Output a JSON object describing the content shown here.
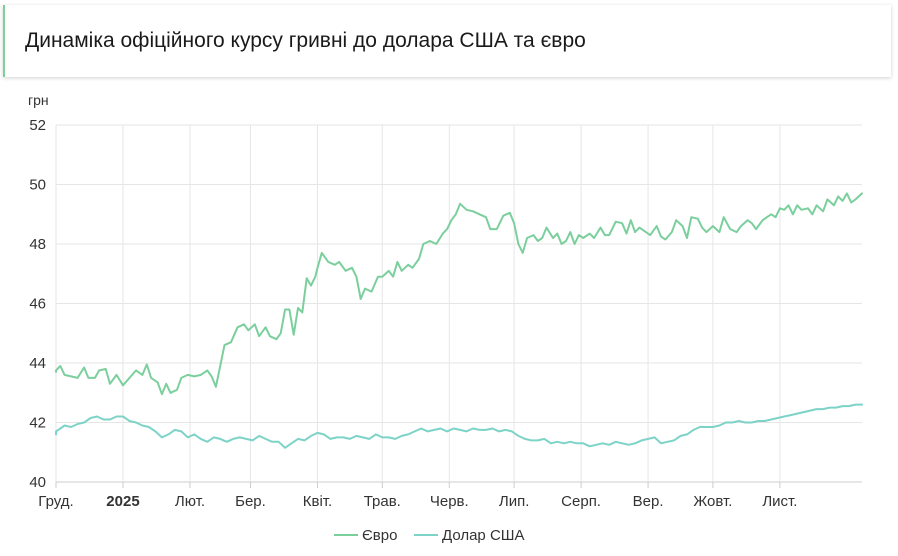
{
  "header": {
    "title": "Динаміка офіційного курсу гривні до долара США та євро"
  },
  "colors": {
    "euro": "#7bcf9d",
    "usd": "#7dd3c7",
    "grid": "#e6e6e6",
    "axis": "#cccccc"
  },
  "chart_data": {
    "type": "line",
    "title": "Динаміка офіційного курсу гривні до долара США та євро",
    "yunit": "грн",
    "ylim": [
      40,
      52
    ],
    "yticks": [
      "40",
      "42",
      "44",
      "46",
      "48",
      "50",
      "52"
    ],
    "grid": true,
    "legend": "bottom-center",
    "xrange": [
      0,
      373
    ],
    "xticks": [
      {
        "x": 0,
        "label": "Груд.",
        "bold": false
      },
      {
        "x": 31,
        "label": "2025",
        "bold": true
      },
      {
        "x": 62,
        "label": "Лют.",
        "bold": false
      },
      {
        "x": 90,
        "label": "Бер.",
        "bold": false
      },
      {
        "x": 121,
        "label": "Квіт.",
        "bold": false
      },
      {
        "x": 151,
        "label": "Трав.",
        "bold": false
      },
      {
        "x": 182,
        "label": "Черв.",
        "bold": false
      },
      {
        "x": 212,
        "label": "Лип.",
        "bold": false
      },
      {
        "x": 243,
        "label": "Серп.",
        "bold": false
      },
      {
        "x": 274,
        "label": "Вер.",
        "bold": false
      },
      {
        "x": 304,
        "label": "Жовт.",
        "bold": false
      },
      {
        "x": 335,
        "label": "Лист.",
        "bold": false
      }
    ],
    "series": [
      {
        "name": "Євро",
        "points": [
          [
            -6,
            43.7
          ],
          [
            -2,
            43.75
          ],
          [
            2,
            43.9
          ],
          [
            4,
            43.6
          ],
          [
            7,
            43.55
          ],
          [
            10,
            43.5
          ],
          [
            13,
            43.85
          ],
          [
            15,
            43.5
          ],
          [
            18,
            43.5
          ],
          [
            20,
            43.75
          ],
          [
            23,
            43.8
          ],
          [
            25,
            43.3
          ],
          [
            28,
            43.6
          ],
          [
            31,
            43.25
          ],
          [
            34,
            43.5
          ],
          [
            37,
            43.75
          ],
          [
            40,
            43.6
          ],
          [
            42,
            43.95
          ],
          [
            44,
            43.5
          ],
          [
            47,
            43.35
          ],
          [
            49,
            42.95
          ],
          [
            51,
            43.3
          ],
          [
            53,
            43.0
          ],
          [
            56,
            43.1
          ],
          [
            58,
            43.5
          ],
          [
            61,
            43.6
          ],
          [
            64,
            43.55
          ],
          [
            67,
            43.6
          ],
          [
            70,
            43.75
          ],
          [
            72,
            43.55
          ],
          [
            74,
            43.2
          ],
          [
            76,
            43.9
          ],
          [
            78,
            44.6
          ],
          [
            81,
            44.7
          ],
          [
            84,
            45.2
          ],
          [
            87,
            45.3
          ],
          [
            89,
            45.1
          ],
          [
            92,
            45.3
          ],
          [
            94,
            44.9
          ],
          [
            97,
            45.2
          ],
          [
            99,
            44.9
          ],
          [
            102,
            44.8
          ],
          [
            104,
            45.0
          ],
          [
            106,
            45.8
          ],
          [
            108,
            45.8
          ],
          [
            110,
            44.95
          ],
          [
            112,
            45.85
          ],
          [
            114,
            45.7
          ],
          [
            116,
            46.85
          ],
          [
            118,
            46.6
          ],
          [
            120,
            46.9
          ],
          [
            121,
            47.2
          ],
          [
            123,
            47.7
          ],
          [
            126,
            47.4
          ],
          [
            129,
            47.3
          ],
          [
            131,
            47.4
          ],
          [
            134,
            47.1
          ],
          [
            137,
            47.2
          ],
          [
            139,
            46.9
          ],
          [
            141,
            46.15
          ],
          [
            143,
            46.5
          ],
          [
            146,
            46.4
          ],
          [
            149,
            46.9
          ],
          [
            151,
            46.9
          ],
          [
            154,
            47.1
          ],
          [
            156,
            46.9
          ],
          [
            158,
            47.4
          ],
          [
            160,
            47.1
          ],
          [
            163,
            47.3
          ],
          [
            165,
            47.2
          ],
          [
            168,
            47.5
          ],
          [
            170,
            48.0
          ],
          [
            173,
            48.1
          ],
          [
            176,
            48.0
          ],
          [
            179,
            48.35
          ],
          [
            181,
            48.5
          ],
          [
            183,
            48.8
          ],
          [
            185,
            49.0
          ],
          [
            187,
            49.35
          ],
          [
            190,
            49.15
          ],
          [
            193,
            49.1
          ],
          [
            196,
            49.0
          ],
          [
            199,
            48.9
          ],
          [
            201,
            48.5
          ],
          [
            204,
            48.5
          ],
          [
            207,
            48.95
          ],
          [
            210,
            49.05
          ],
          [
            212,
            48.7
          ],
          [
            214,
            48.0
          ],
          [
            216,
            47.7
          ],
          [
            218,
            48.2
          ],
          [
            221,
            48.3
          ],
          [
            223,
            48.1
          ],
          [
            225,
            48.2
          ],
          [
            227,
            48.55
          ],
          [
            230,
            48.2
          ],
          [
            232,
            48.35
          ],
          [
            234,
            48.0
          ],
          [
            236,
            48.1
          ],
          [
            238,
            48.4
          ],
          [
            240,
            48.0
          ],
          [
            242,
            48.3
          ],
          [
            244,
            48.2
          ],
          [
            247,
            48.35
          ],
          [
            249,
            48.2
          ],
          [
            252,
            48.55
          ],
          [
            254,
            48.3
          ],
          [
            256,
            48.3
          ],
          [
            259,
            48.75
          ],
          [
            262,
            48.7
          ],
          [
            264,
            48.35
          ],
          [
            266,
            48.8
          ],
          [
            268,
            48.4
          ],
          [
            270,
            48.55
          ],
          [
            273,
            48.4
          ],
          [
            275,
            48.3
          ],
          [
            278,
            48.6
          ],
          [
            280,
            48.25
          ],
          [
            282,
            48.15
          ],
          [
            285,
            48.4
          ],
          [
            287,
            48.8
          ],
          [
            290,
            48.6
          ],
          [
            292,
            48.2
          ],
          [
            294,
            48.9
          ],
          [
            297,
            48.85
          ],
          [
            299,
            48.55
          ],
          [
            301,
            48.4
          ],
          [
            304,
            48.6
          ],
          [
            307,
            48.4
          ],
          [
            309,
            48.9
          ],
          [
            312,
            48.5
          ],
          [
            315,
            48.4
          ],
          [
            317,
            48.6
          ],
          [
            320,
            48.8
          ],
          [
            322,
            48.7
          ],
          [
            324,
            48.5
          ],
          [
            327,
            48.8
          ],
          [
            329,
            48.9
          ],
          [
            331,
            49.0
          ],
          [
            333,
            48.9
          ],
          [
            335,
            49.2
          ],
          [
            337,
            49.15
          ],
          [
            339,
            49.3
          ],
          [
            341,
            49.0
          ],
          [
            343,
            49.3
          ],
          [
            345,
            49.15
          ],
          [
            348,
            49.2
          ],
          [
            350,
            49.0
          ],
          [
            352,
            49.3
          ],
          [
            355,
            49.1
          ],
          [
            357,
            49.5
          ],
          [
            360,
            49.3
          ],
          [
            362,
            49.6
          ],
          [
            364,
            49.45
          ],
          [
            366,
            49.7
          ],
          [
            368,
            49.4
          ],
          [
            370,
            49.5
          ],
          [
            373,
            49.7
          ]
        ]
      },
      {
        "name": "Долар США",
        "points": [
          [
            -6,
            41.6
          ],
          [
            -2,
            41.7
          ],
          [
            2,
            41.8
          ],
          [
            4,
            41.9
          ],
          [
            7,
            41.85
          ],
          [
            10,
            41.95
          ],
          [
            13,
            42.0
          ],
          [
            16,
            42.15
          ],
          [
            19,
            42.2
          ],
          [
            22,
            42.1
          ],
          [
            25,
            42.1
          ],
          [
            28,
            42.2
          ],
          [
            31,
            42.2
          ],
          [
            34,
            42.05
          ],
          [
            37,
            42.0
          ],
          [
            40,
            41.9
          ],
          [
            43,
            41.85
          ],
          [
            46,
            41.7
          ],
          [
            49,
            41.5
          ],
          [
            52,
            41.6
          ],
          [
            55,
            41.75
          ],
          [
            58,
            41.7
          ],
          [
            61,
            41.5
          ],
          [
            64,
            41.6
          ],
          [
            67,
            41.45
          ],
          [
            70,
            41.35
          ],
          [
            73,
            41.5
          ],
          [
            76,
            41.45
          ],
          [
            79,
            41.35
          ],
          [
            82,
            41.45
          ],
          [
            85,
            41.5
          ],
          [
            88,
            41.45
          ],
          [
            91,
            41.4
          ],
          [
            94,
            41.55
          ],
          [
            97,
            41.45
          ],
          [
            100,
            41.35
          ],
          [
            103,
            41.35
          ],
          [
            106,
            41.15
          ],
          [
            109,
            41.3
          ],
          [
            112,
            41.45
          ],
          [
            115,
            41.4
          ],
          [
            118,
            41.55
          ],
          [
            121,
            41.65
          ],
          [
            124,
            41.6
          ],
          [
            127,
            41.45
          ],
          [
            130,
            41.5
          ],
          [
            133,
            41.5
          ],
          [
            136,
            41.45
          ],
          [
            139,
            41.55
          ],
          [
            142,
            41.5
          ],
          [
            145,
            41.45
          ],
          [
            148,
            41.6
          ],
          [
            151,
            41.5
          ],
          [
            154,
            41.5
          ],
          [
            157,
            41.45
          ],
          [
            160,
            41.55
          ],
          [
            163,
            41.6
          ],
          [
            166,
            41.7
          ],
          [
            169,
            41.8
          ],
          [
            172,
            41.7
          ],
          [
            175,
            41.75
          ],
          [
            178,
            41.8
          ],
          [
            181,
            41.7
          ],
          [
            184,
            41.8
          ],
          [
            187,
            41.75
          ],
          [
            190,
            41.7
          ],
          [
            193,
            41.8
          ],
          [
            196,
            41.75
          ],
          [
            199,
            41.75
          ],
          [
            202,
            41.8
          ],
          [
            205,
            41.7
          ],
          [
            208,
            41.75
          ],
          [
            211,
            41.7
          ],
          [
            214,
            41.55
          ],
          [
            217,
            41.45
          ],
          [
            220,
            41.4
          ],
          [
            223,
            41.4
          ],
          [
            226,
            41.45
          ],
          [
            229,
            41.3
          ],
          [
            232,
            41.35
          ],
          [
            235,
            41.3
          ],
          [
            238,
            41.35
          ],
          [
            241,
            41.3
          ],
          [
            244,
            41.3
          ],
          [
            247,
            41.2
          ],
          [
            250,
            41.25
          ],
          [
            253,
            41.3
          ],
          [
            256,
            41.25
          ],
          [
            259,
            41.35
          ],
          [
            262,
            41.3
          ],
          [
            265,
            41.25
          ],
          [
            268,
            41.3
          ],
          [
            271,
            41.4
          ],
          [
            274,
            41.45
          ],
          [
            277,
            41.5
          ],
          [
            280,
            41.3
          ],
          [
            283,
            41.35
          ],
          [
            286,
            41.4
          ],
          [
            289,
            41.55
          ],
          [
            292,
            41.6
          ],
          [
            295,
            41.75
          ],
          [
            298,
            41.85
          ],
          [
            301,
            41.85
          ],
          [
            304,
            41.85
          ],
          [
            307,
            41.9
          ],
          [
            310,
            42.0
          ],
          [
            313,
            42.0
          ],
          [
            316,
            42.05
          ],
          [
            319,
            42.0
          ],
          [
            322,
            42.0
          ],
          [
            325,
            42.05
          ],
          [
            328,
            42.05
          ],
          [
            331,
            42.1
          ],
          [
            334,
            42.15
          ],
          [
            337,
            42.2
          ],
          [
            340,
            42.25
          ],
          [
            343,
            42.3
          ],
          [
            346,
            42.35
          ],
          [
            349,
            42.4
          ],
          [
            352,
            42.45
          ],
          [
            355,
            42.45
          ],
          [
            358,
            42.5
          ],
          [
            361,
            42.5
          ],
          [
            364,
            42.55
          ],
          [
            367,
            42.55
          ],
          [
            370,
            42.6
          ],
          [
            373,
            42.6
          ]
        ]
      }
    ]
  }
}
